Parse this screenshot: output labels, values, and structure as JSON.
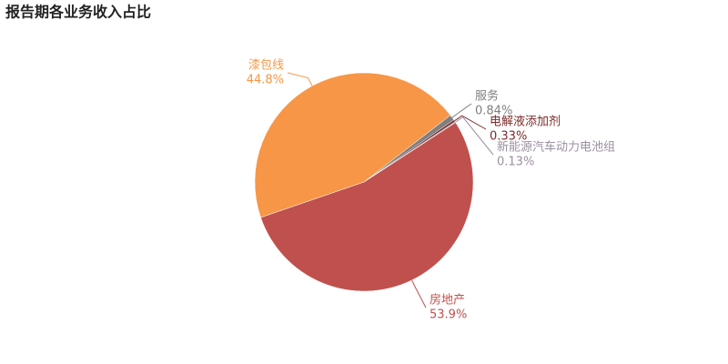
{
  "chart_data": {
    "type": "pie",
    "title": "报告期各业务收入占比",
    "categories": [
      "房地产",
      "漆包线",
      "服务",
      "电解液添加剂",
      "新能源汽车动力电池组"
    ],
    "values": [
      53.9,
      44.8,
      0.84,
      0.33,
      0.13
    ],
    "value_labels": [
      "53.9%",
      "44.8%",
      "0.84%",
      "0.33%",
      "0.13%"
    ],
    "colors": [
      "#c0504d",
      "#f79646",
      "#7f7f7f",
      "#7b2c2c",
      "#9c8fa0"
    ]
  }
}
